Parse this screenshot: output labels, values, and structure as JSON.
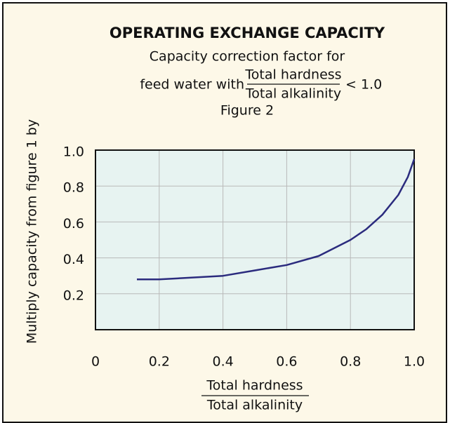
{
  "chart_data": {
    "type": "line",
    "title": "OPERATING EXCHANGE CAPACITY",
    "subtitle": "Capacity correction factor for",
    "condition": {
      "prefix": "feed water with",
      "numerator": "Total hardness",
      "denominator": "Total alkalinity",
      "suffix": "< 1.0"
    },
    "figure_label": "Figure 2",
    "y_label": "Multiply capacity from figure 1 by",
    "x_label": {
      "numerator": "Total hardness",
      "denominator": "Total alkalinity"
    },
    "x": [
      0.13,
      0.2,
      0.3,
      0.4,
      0.5,
      0.6,
      0.7,
      0.8,
      0.85,
      0.9,
      0.95,
      0.98,
      1.0
    ],
    "values": [
      0.28,
      0.28,
      0.29,
      0.3,
      0.33,
      0.36,
      0.41,
      0.5,
      0.56,
      0.64,
      0.75,
      0.85,
      0.95
    ],
    "color": "#2b2b7e",
    "xlim": [
      0,
      1
    ],
    "ylim": [
      0,
      1
    ],
    "xticks": [
      0,
      0.2,
      0.4,
      0.6,
      0.8,
      {
        "value": 1,
        "label": "1.0"
      }
    ],
    "yticks": [
      0.2,
      0.4,
      0.6,
      0.8,
      {
        "value": 1,
        "label": "1.0"
      }
    ],
    "grid": true
  }
}
